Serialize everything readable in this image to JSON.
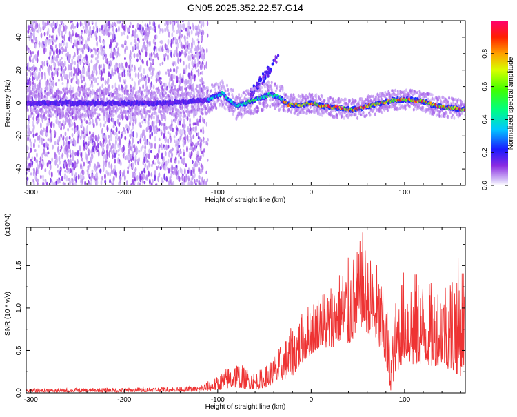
{
  "chart_data": [
    {
      "type": "heatmap",
      "title": "GN05.2025.352.22.57.G14",
      "xlabel": "Height of straight line (km)",
      "ylabel": "Frequency (Hz)",
      "xlim": [
        -305,
        165
      ],
      "ylim": [
        -50,
        50
      ],
      "x_ticks": [
        -300,
        -200,
        -100,
        0,
        100
      ],
      "y_ticks": [
        -40,
        -20,
        0,
        20,
        40
      ],
      "colorbar": {
        "label": "Normalized spectral amplitude",
        "range": [
          0.0,
          1.0
        ],
        "ticks": [
          0.0,
          0.2,
          0.4,
          0.6,
          0.8
        ]
      },
      "ridge_trace": {
        "description": "dominant frequency track (Hz) vs height (km)",
        "x": [
          -300,
          -250,
          -200,
          -150,
          -110,
          -95,
          -80,
          -60,
          -45,
          -35,
          -25,
          -10,
          0,
          15,
          30,
          45,
          60,
          75,
          90,
          105,
          120,
          135,
          150,
          165
        ],
        "y": [
          0,
          0,
          0,
          0,
          2,
          6,
          -2,
          2,
          5,
          4,
          -1,
          -1,
          0,
          -2,
          -3,
          -4,
          -2,
          0,
          2,
          2,
          1,
          -2,
          -3,
          -4
        ]
      }
    },
    {
      "type": "line",
      "title": "",
      "xlabel": "Height of straight line (km)",
      "ylabel": "SNR (10 * v/v)",
      "y_multiplier": "(x10^4)",
      "xlim": [
        -305,
        165
      ],
      "ylim": [
        0,
        1.95
      ],
      "x_ticks": [
        -300,
        -200,
        -100,
        0,
        100
      ],
      "y_ticks": [
        0.0,
        0.5,
        1.0,
        1.5
      ],
      "series": [
        {
          "name": "SNR",
          "color": "#ee3333",
          "envelope_x": [
            -305,
            -200,
            -120,
            -100,
            -90,
            -80,
            -70,
            -60,
            -50,
            -40,
            -30,
            -20,
            -10,
            0,
            10,
            20,
            30,
            40,
            50,
            55,
            60,
            70,
            80,
            85,
            90,
            100,
            110,
            120,
            130,
            140,
            150,
            160,
            165
          ],
          "envelope_upper": [
            0.05,
            0.06,
            0.08,
            0.2,
            0.3,
            0.38,
            0.3,
            0.25,
            0.3,
            0.45,
            0.6,
            0.8,
            0.95,
            1.1,
            1.2,
            1.3,
            1.45,
            1.6,
            1.7,
            1.92,
            1.65,
            1.55,
            1.2,
            0.5,
            1.1,
            1.5,
            1.45,
            1.35,
            1.3,
            1.35,
            1.5,
            1.65,
            1.6
          ],
          "envelope_lower": [
            0.01,
            0.01,
            0.02,
            0.03,
            0.05,
            0.06,
            0.05,
            0.04,
            0.06,
            0.1,
            0.15,
            0.2,
            0.35,
            0.45,
            0.55,
            0.5,
            0.6,
            0.55,
            0.7,
            0.8,
            0.7,
            0.6,
            0.3,
            0.02,
            0.2,
            0.4,
            0.3,
            0.35,
            0.3,
            0.35,
            0.25,
            0.2,
            0.35
          ]
        }
      ]
    }
  ],
  "colors": {
    "axis": "#000000",
    "background": "#ffffff"
  }
}
